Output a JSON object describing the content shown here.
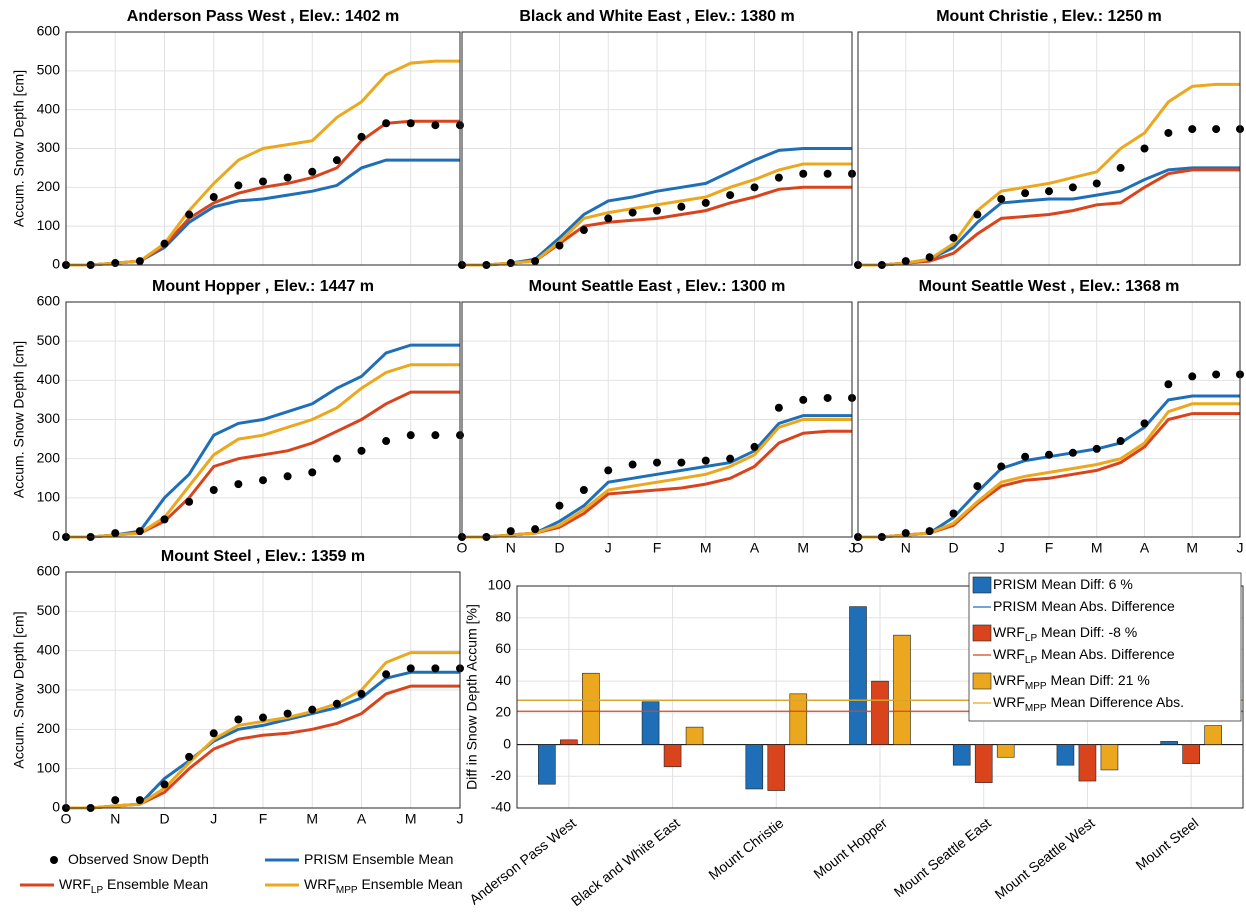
{
  "legend": [
    {
      "label": "Observed Snow Depth",
      "color": "#000000",
      "marker": "dot"
    },
    {
      "label": "PRISM Ensemble Mean",
      "color": "#1f6fb8",
      "marker": "line"
    },
    {
      "label": "WRF",
      "sub": "LP",
      "rest": " Ensemble Mean",
      "color": "#d9441c",
      "marker": "line"
    },
    {
      "label": "WRF",
      "sub": "MPP",
      "rest": " Ensemble Mean",
      "color": "#eba81e",
      "marker": "line"
    }
  ],
  "chart_data": [
    {
      "type": "line",
      "title": "Anderson Pass West , Elev.: 1402 m",
      "ylabel": "Accum. Snow Depth [cm]",
      "categories": [
        "O",
        null,
        "N",
        null,
        "D",
        null,
        "J",
        null,
        "F",
        null,
        "M",
        null,
        "A",
        null,
        "M",
        null,
        "J"
      ],
      "ylim": [
        0,
        600
      ],
      "yticks": [
        0,
        100,
        200,
        300,
        400,
        500,
        600
      ],
      "grid": true,
      "x_tick_labels": false,
      "y_tick_labels": true,
      "series": [
        {
          "style": "dots",
          "color": "#000000",
          "values": [
            0,
            0,
            5,
            10,
            55,
            130,
            175,
            205,
            215,
            225,
            240,
            270,
            330,
            365,
            365,
            360,
            360
          ]
        },
        {
          "style": "line",
          "color": "#1f6fb8",
          "values": [
            0,
            0,
            5,
            10,
            45,
            110,
            150,
            165,
            170,
            180,
            190,
            205,
            250,
            270,
            270,
            270,
            270
          ]
        },
        {
          "style": "line",
          "color": "#d9441c",
          "values": [
            0,
            0,
            5,
            10,
            50,
            120,
            160,
            185,
            200,
            210,
            225,
            250,
            320,
            365,
            370,
            370,
            370
          ]
        },
        {
          "style": "line",
          "color": "#eba81e",
          "values": [
            0,
            0,
            5,
            10,
            55,
            140,
            210,
            270,
            300,
            310,
            320,
            380,
            420,
            490,
            520,
            525,
            525
          ]
        }
      ]
    },
    {
      "type": "line",
      "title": "Black and White East , Elev.: 1380 m",
      "categories": [
        "O",
        null,
        "N",
        null,
        "D",
        null,
        "J",
        null,
        "F",
        null,
        "M",
        null,
        "A",
        null,
        "M",
        null,
        "J"
      ],
      "ylim": [
        0,
        600
      ],
      "yticks": [
        0,
        100,
        200,
        300,
        400,
        500,
        600
      ],
      "grid": true,
      "x_tick_labels": false,
      "y_tick_labels": false,
      "series": [
        {
          "style": "dots",
          "color": "#000000",
          "values": [
            0,
            0,
            5,
            10,
            50,
            90,
            120,
            135,
            140,
            150,
            160,
            180,
            200,
            225,
            235,
            235,
            235
          ]
        },
        {
          "style": "line",
          "color": "#1f6fb8",
          "values": [
            0,
            0,
            5,
            15,
            70,
            130,
            165,
            175,
            190,
            200,
            210,
            240,
            270,
            295,
            300,
            300,
            300
          ]
        },
        {
          "style": "line",
          "color": "#d9441c",
          "values": [
            0,
            0,
            5,
            10,
            55,
            100,
            110,
            115,
            120,
            130,
            140,
            160,
            175,
            195,
            200,
            200,
            200
          ]
        },
        {
          "style": "line",
          "color": "#eba81e",
          "values": [
            0,
            0,
            5,
            10,
            60,
            120,
            135,
            145,
            155,
            165,
            175,
            200,
            220,
            245,
            260,
            260,
            260
          ]
        }
      ]
    },
    {
      "type": "line",
      "title": "Mount Christie , Elev.: 1250 m",
      "categories": [
        "O",
        null,
        "N",
        null,
        "D",
        null,
        "J",
        null,
        "F",
        null,
        "M",
        null,
        "A",
        null,
        "M",
        null,
        "J"
      ],
      "ylim": [
        0,
        600
      ],
      "yticks": [
        0,
        100,
        200,
        300,
        400,
        500,
        600
      ],
      "grid": true,
      "x_tick_labels": false,
      "y_tick_labels": false,
      "series": [
        {
          "style": "dots",
          "color": "#000000",
          "values": [
            0,
            0,
            10,
            20,
            70,
            130,
            170,
            185,
            190,
            200,
            210,
            250,
            300,
            340,
            350,
            350,
            350
          ]
        },
        {
          "style": "line",
          "color": "#1f6fb8",
          "values": [
            0,
            0,
            5,
            15,
            45,
            110,
            160,
            165,
            170,
            170,
            180,
            190,
            220,
            245,
            250,
            250,
            250
          ]
        },
        {
          "style": "line",
          "color": "#d9441c",
          "values": [
            0,
            0,
            5,
            10,
            30,
            80,
            120,
            125,
            130,
            140,
            155,
            160,
            200,
            235,
            245,
            245,
            245
          ]
        },
        {
          "style": "line",
          "color": "#eba81e",
          "values": [
            0,
            0,
            5,
            15,
            55,
            140,
            190,
            200,
            210,
            225,
            240,
            300,
            340,
            420,
            460,
            465,
            465
          ]
        }
      ]
    },
    {
      "type": "line",
      "title": "Mount Hopper , Elev.: 1447 m",
      "ylabel": "Accum. Snow Depth [cm]",
      "categories": [
        "O",
        null,
        "N",
        null,
        "D",
        null,
        "J",
        null,
        "F",
        null,
        "M",
        null,
        "A",
        null,
        "M",
        null,
        "J"
      ],
      "ylim": [
        0,
        600
      ],
      "yticks": [
        0,
        100,
        200,
        300,
        400,
        500,
        600
      ],
      "grid": true,
      "x_tick_labels": false,
      "y_tick_labels": true,
      "series": [
        {
          "style": "dots",
          "color": "#000000",
          "values": [
            0,
            0,
            10,
            15,
            45,
            90,
            120,
            135,
            145,
            155,
            165,
            200,
            220,
            245,
            260,
            260,
            260
          ]
        },
        {
          "style": "line",
          "color": "#1f6fb8",
          "values": [
            0,
            0,
            5,
            15,
            100,
            160,
            260,
            290,
            300,
            320,
            340,
            380,
            410,
            470,
            490,
            490,
            490
          ]
        },
        {
          "style": "line",
          "color": "#d9441c",
          "values": [
            0,
            0,
            5,
            10,
            40,
            100,
            180,
            200,
            210,
            220,
            240,
            270,
            300,
            340,
            370,
            370,
            370
          ]
        },
        {
          "style": "line",
          "color": "#eba81e",
          "values": [
            0,
            0,
            5,
            10,
            50,
            130,
            210,
            250,
            260,
            280,
            300,
            330,
            380,
            420,
            440,
            440,
            440
          ]
        }
      ]
    },
    {
      "type": "line",
      "title": "Mount Seattle East , Elev.: 1300 m",
      "categories": [
        "O",
        null,
        "N",
        null,
        "D",
        null,
        "J",
        null,
        "F",
        null,
        "M",
        null,
        "A",
        null,
        "M",
        null,
        "J"
      ],
      "ylim": [
        0,
        600
      ],
      "yticks": [
        0,
        100,
        200,
        300,
        400,
        500,
        600
      ],
      "grid": true,
      "x_tick_labels": true,
      "y_tick_labels": false,
      "series": [
        {
          "style": "dots",
          "color": "#000000",
          "values": [
            0,
            0,
            15,
            20,
            80,
            120,
            170,
            185,
            190,
            190,
            195,
            200,
            230,
            330,
            350,
            355,
            355
          ]
        },
        {
          "style": "line",
          "color": "#1f6fb8",
          "values": [
            0,
            0,
            5,
            10,
            40,
            80,
            140,
            150,
            160,
            170,
            180,
            190,
            220,
            290,
            310,
            310,
            310
          ]
        },
        {
          "style": "line",
          "color": "#d9441c",
          "values": [
            0,
            0,
            5,
            10,
            25,
            60,
            110,
            115,
            120,
            125,
            135,
            150,
            180,
            240,
            265,
            270,
            270
          ]
        },
        {
          "style": "line",
          "color": "#eba81e",
          "values": [
            0,
            0,
            5,
            10,
            30,
            70,
            120,
            130,
            140,
            150,
            160,
            180,
            210,
            280,
            300,
            300,
            300
          ]
        }
      ]
    },
    {
      "type": "line",
      "title": "Mount Seattle West , Elev.: 1368 m",
      "categories": [
        "O",
        null,
        "N",
        null,
        "D",
        null,
        "J",
        null,
        "F",
        null,
        "M",
        null,
        "A",
        null,
        "M",
        null,
        "J"
      ],
      "ylim": [
        0,
        600
      ],
      "yticks": [
        0,
        100,
        200,
        300,
        400,
        500,
        600
      ],
      "grid": true,
      "x_tick_labels": true,
      "y_tick_labels": false,
      "series": [
        {
          "style": "dots",
          "color": "#000000",
          "values": [
            0,
            0,
            10,
            15,
            60,
            130,
            180,
            205,
            210,
            215,
            225,
            245,
            290,
            390,
            410,
            415,
            415
          ]
        },
        {
          "style": "line",
          "color": "#1f6fb8",
          "values": [
            0,
            0,
            5,
            10,
            50,
            115,
            175,
            195,
            205,
            215,
            225,
            240,
            280,
            350,
            360,
            360,
            360
          ]
        },
        {
          "style": "line",
          "color": "#d9441c",
          "values": [
            0,
            0,
            5,
            10,
            30,
            85,
            130,
            145,
            150,
            160,
            170,
            190,
            230,
            300,
            315,
            315,
            315
          ]
        },
        {
          "style": "line",
          "color": "#eba81e",
          "values": [
            0,
            0,
            5,
            10,
            35,
            90,
            140,
            155,
            165,
            175,
            185,
            200,
            240,
            320,
            340,
            340,
            340
          ]
        }
      ]
    },
    {
      "type": "line",
      "title": "Mount Steel , Elev.: 1359 m",
      "ylabel": "Accum. Snow Depth [cm]",
      "categories": [
        "O",
        null,
        "N",
        null,
        "D",
        null,
        "J",
        null,
        "F",
        null,
        "M",
        null,
        "A",
        null,
        "M",
        null,
        "J"
      ],
      "ylim": [
        0,
        600
      ],
      "yticks": [
        0,
        100,
        200,
        300,
        400,
        500,
        600
      ],
      "grid": true,
      "x_tick_labels": true,
      "y_tick_labels": true,
      "series": [
        {
          "style": "dots",
          "color": "#000000",
          "values": [
            0,
            0,
            20,
            20,
            60,
            130,
            190,
            225,
            230,
            240,
            250,
            265,
            290,
            340,
            355,
            355,
            355
          ]
        },
        {
          "style": "line",
          "color": "#1f6fb8",
          "values": [
            0,
            0,
            5,
            10,
            75,
            120,
            170,
            200,
            210,
            225,
            240,
            255,
            280,
            330,
            345,
            345,
            345
          ]
        },
        {
          "style": "line",
          "color": "#d9441c",
          "values": [
            0,
            0,
            5,
            10,
            40,
            100,
            150,
            175,
            185,
            190,
            200,
            215,
            240,
            290,
            310,
            310,
            310
          ]
        },
        {
          "style": "line",
          "color": "#eba81e",
          "values": [
            0,
            0,
            5,
            10,
            50,
            115,
            175,
            210,
            220,
            230,
            245,
            265,
            300,
            370,
            395,
            395,
            395
          ]
        }
      ]
    },
    {
      "type": "bar",
      "ylabel": "Diff in Snow Depth Accum [%]",
      "categories": [
        "Anderson Pass West",
        "Black and White East",
        "Mount Christie",
        "Mount Hopper",
        "Mount Seattle East",
        "Mount Seattle West",
        "Mount Steel"
      ],
      "ylim": [
        -40,
        100
      ],
      "yticks": [
        -40,
        -20,
        0,
        20,
        40,
        60,
        80,
        100
      ],
      "grid": true,
      "legend_position": "upper right",
      "series": [
        {
          "name": "PRISM",
          "diff_label": " Mean Diff: 6 %",
          "line_label": " Mean Abs. Difference",
          "color": "#1f6fb8",
          "mean_abs": 28,
          "values": [
            -25,
            27,
            -28,
            87,
            -13,
            -13,
            2
          ]
        },
        {
          "name": "WRF",
          "name_sub": "LP",
          "diff_label": " Mean Diff: -8 %",
          "line_label": " Mean Abs. Difference",
          "color": "#d9441c",
          "mean_abs": 21,
          "values": [
            3,
            -14,
            -29,
            40,
            -24,
            -23,
            -12
          ]
        },
        {
          "name": "WRF",
          "name_sub": "MPP",
          "diff_label": " Mean Diff: 21 %",
          "line_label": " Mean Difference Abs.",
          "color": "#eba81e",
          "mean_abs": 28,
          "values": [
            45,
            11,
            32,
            69,
            -8,
            -16,
            12
          ]
        }
      ]
    }
  ]
}
